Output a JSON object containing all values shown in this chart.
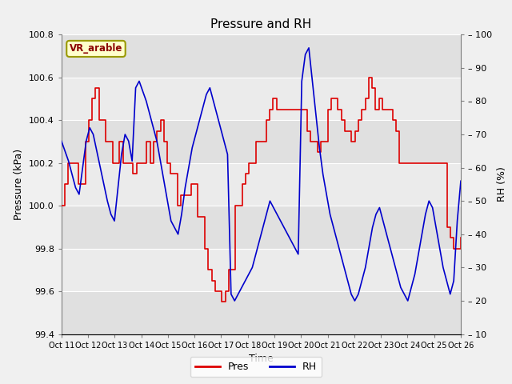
{
  "title": "Pressure and RH",
  "xlabel": "Time",
  "ylabel_left": "Pressure (kPa)",
  "ylabel_right": "RH (%)",
  "annotation": "VR_arable",
  "ylim_left": [
    99.4,
    100.8
  ],
  "ylim_right": [
    10,
    100
  ],
  "yticks_left": [
    99.4,
    99.6,
    99.8,
    100.0,
    100.2,
    100.4,
    100.6,
    100.8
  ],
  "yticks_right": [
    10,
    20,
    30,
    40,
    50,
    60,
    70,
    80,
    90,
    100
  ],
  "xtick_labels": [
    "Oct 11",
    "Oct 12",
    "Oct 13",
    "Oct 14",
    "Oct 15",
    "Oct 16",
    "Oct 17",
    "Oct 18",
    "Oct 19",
    "Oct 20",
    "Oct 21",
    "Oct 22",
    "Oct 23",
    "Oct 24",
    "Oct 25",
    "Oct 26"
  ],
  "color_pres": "#dd0000",
  "color_rh": "#0000cc",
  "bg_color": "#f0f0f0",
  "plot_bg_light": "#ececec",
  "plot_bg_dark": "#d8d8d8",
  "grid_color": "#ffffff",
  "legend_pres": "Pres",
  "legend_rh": "RH",
  "band_colors": [
    "#e8e8e8",
    "#d4d4d4",
    "#e8e8e8",
    "#d4d4d4",
    "#e8e8e8",
    "#d4d4d4",
    "#e8e8e8"
  ],
  "pres_data": [
    100.0,
    100.1,
    100.2,
    100.2,
    100.2,
    100.1,
    100.1,
    100.3,
    100.4,
    100.5,
    100.55,
    100.4,
    100.4,
    100.3,
    100.3,
    100.2,
    100.2,
    100.3,
    100.2,
    100.2,
    100.2,
    100.15,
    100.2,
    100.2,
    100.2,
    100.3,
    100.2,
    100.3,
    100.35,
    100.4,
    100.3,
    100.2,
    100.15,
    100.15,
    100.0,
    100.05,
    100.05,
    100.05,
    100.1,
    100.1,
    99.95,
    99.95,
    99.8,
    99.7,
    99.65,
    99.6,
    99.6,
    99.55,
    99.6,
    99.7,
    99.7,
    100.0,
    100.0,
    100.1,
    100.15,
    100.2,
    100.2,
    100.3,
    100.3,
    100.3,
    100.4,
    100.45,
    100.5,
    100.45,
    100.45,
    100.45,
    100.45,
    100.45,
    100.45,
    100.45,
    100.45,
    100.45,
    100.35,
    100.3,
    100.3,
    100.25,
    100.3,
    100.3,
    100.45,
    100.5,
    100.5,
    100.45,
    100.4,
    100.35,
    100.35,
    100.3,
    100.35,
    100.4,
    100.45,
    100.5,
    100.6,
    100.55,
    100.45,
    100.5,
    100.45,
    100.45,
    100.45,
    100.4,
    100.35,
    100.2,
    100.2,
    100.2,
    100.2,
    100.2,
    100.2,
    100.2,
    100.2,
    100.2,
    100.2,
    100.2,
    100.2,
    100.2,
    100.2,
    99.9,
    99.85,
    99.8,
    99.8,
    99.85
  ],
  "rh_data": [
    68,
    65,
    62,
    58,
    54,
    52,
    60,
    68,
    72,
    70,
    65,
    60,
    55,
    50,
    46,
    44,
    54,
    64,
    70,
    68,
    62,
    84,
    86,
    83,
    80,
    76,
    72,
    68,
    62,
    56,
    50,
    44,
    42,
    40,
    46,
    54,
    60,
    66,
    70,
    74,
    78,
    82,
    84,
    80,
    76,
    72,
    68,
    64,
    22,
    20,
    22,
    24,
    26,
    28,
    30,
    34,
    38,
    42,
    46,
    50,
    48,
    46,
    44,
    42,
    40,
    38,
    36,
    34,
    86,
    94,
    96,
    86,
    76,
    66,
    58,
    52,
    46,
    42,
    38,
    34,
    30,
    26,
    22,
    20,
    22,
    26,
    30,
    36,
    42,
    46,
    48,
    44,
    40,
    36,
    32,
    28,
    24,
    22,
    20,
    24,
    28,
    34,
    40,
    46,
    50,
    48,
    42,
    36,
    30,
    26,
    22,
    26,
    44,
    56
  ]
}
